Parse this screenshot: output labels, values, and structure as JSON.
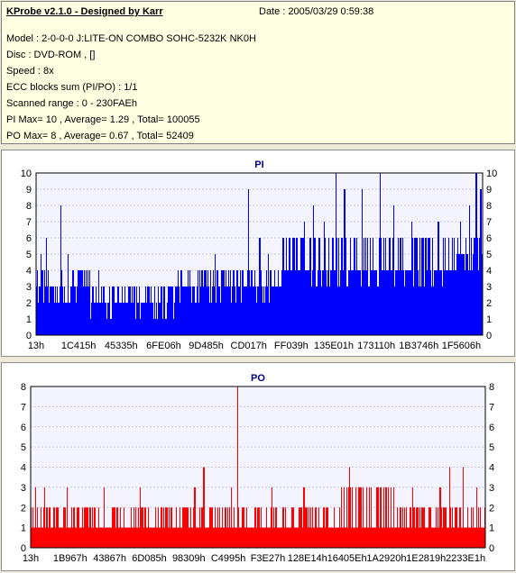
{
  "header": {
    "title": "KProbe v2.1.0 - Designed by Karr",
    "date": "Date : 2005/03/29 0:59:38",
    "lines": [
      "Model : 2-0-0-0 J:LITE-ON COMBO SOHC-5232K NK0H",
      "Disc : DVD-ROM ,  []",
      "Speed : 8x",
      "ECC blocks sum (PI/PO) : 1/1",
      "Scanned range : 0 - 230FAEh",
      "PI Max= 10 , Average= 1.29 , Total= 100055",
      "PO Max= 8 , Average= 0.67 , Total= 52409"
    ]
  },
  "chart_data": [
    {
      "type": "bar",
      "title": "PI",
      "ylim": [
        0,
        10
      ],
      "yticks": [
        "0",
        "1",
        "2",
        "3",
        "4",
        "5",
        "6",
        "7",
        "8",
        "9",
        "10"
      ],
      "xticks": [
        "13h",
        "1C415h",
        "45335h",
        "6FE06h",
        "9D485h",
        "CD017h",
        "FF039h",
        "135E01h",
        "173110h",
        "1B3746h",
        "1F5606h"
      ],
      "color": "#0000ff",
      "grid": true,
      "segments": [
        {
          "start": 0.0,
          "end": 0.12,
          "base": 3,
          "peak": 4,
          "spikes": [
            [
              0.01,
              5
            ],
            [
              0.022,
              6
            ],
            [
              0.055,
              8
            ],
            [
              0.07,
              5
            ],
            [
              0.1,
              4
            ]
          ]
        },
        {
          "start": 0.12,
          "end": 0.31,
          "base": 2,
          "peak": 3,
          "spikes": [
            [
              0.14,
              4
            ],
            [
              0.22,
              3
            ],
            [
              0.28,
              3
            ]
          ]
        },
        {
          "start": 0.31,
          "end": 0.44,
          "base": 3,
          "peak": 4,
          "spikes": [
            [
              0.34,
              4
            ],
            [
              0.4,
              5
            ],
            [
              0.42,
              4
            ]
          ]
        },
        {
          "start": 0.44,
          "end": 0.55,
          "base": 3,
          "peak": 4,
          "spikes": [
            [
              0.475,
              9
            ],
            [
              0.5,
              6
            ],
            [
              0.52,
              5
            ]
          ]
        },
        {
          "start": 0.55,
          "end": 0.94,
          "base": 4,
          "peak": 6,
          "spikes": [
            [
              0.6,
              7
            ],
            [
              0.62,
              8
            ],
            [
              0.645,
              7
            ],
            [
              0.67,
              10
            ],
            [
              0.69,
              9
            ],
            [
              0.73,
              9
            ],
            [
              0.77,
              10
            ],
            [
              0.8,
              8
            ],
            [
              0.84,
              7
            ],
            [
              0.87,
              6
            ],
            [
              0.9,
              7
            ]
          ]
        },
        {
          "start": 0.94,
          "end": 1.0,
          "base": 5,
          "peak": 6,
          "spikes": [
            [
              0.95,
              7
            ],
            [
              0.97,
              8
            ],
            [
              0.985,
              10
            ],
            [
              0.995,
              9
            ]
          ]
        }
      ]
    },
    {
      "type": "bar",
      "title": "PO",
      "ylim": [
        0,
        8
      ],
      "yticks": [
        "0",
        "1",
        "2",
        "3",
        "4",
        "5",
        "6",
        "7",
        "8"
      ],
      "xticks": [
        "13h",
        "1B967h",
        "43867h",
        "6D085h",
        "98309h",
        "C4995h",
        "F3E27h",
        "128E14h",
        "16405Eh",
        "1A2920h",
        "1E2819h",
        "2233E1h"
      ],
      "color": "#ff0000",
      "grid": true,
      "segments": [
        {
          "start": 0.0,
          "end": 0.3,
          "base": 1,
          "peak": 2,
          "spikes": [
            [
              0.01,
              3
            ],
            [
              0.03,
              3
            ],
            [
              0.05,
              2
            ],
            [
              0.08,
              3
            ],
            [
              0.13,
              2
            ],
            [
              0.16,
              3
            ],
            [
              0.22,
              2
            ],
            [
              0.24,
              3
            ],
            [
              0.28,
              2
            ]
          ]
        },
        {
          "start": 0.3,
          "end": 0.55,
          "base": 1,
          "peak": 2,
          "spikes": [
            [
              0.32,
              2
            ],
            [
              0.36,
              3
            ],
            [
              0.38,
              4
            ],
            [
              0.44,
              3
            ],
            [
              0.455,
              8
            ],
            [
              0.5,
              2
            ],
            [
              0.53,
              3
            ]
          ]
        },
        {
          "start": 0.55,
          "end": 0.68,
          "base": 1,
          "peak": 2,
          "spikes": [
            [
              0.56,
              2
            ],
            [
              0.6,
              3
            ],
            [
              0.65,
              2
            ]
          ]
        },
        {
          "start": 0.68,
          "end": 0.8,
          "base": 1,
          "peak": 3,
          "spikes": [
            [
              0.7,
              4
            ],
            [
              0.73,
              3
            ],
            [
              0.76,
              3
            ]
          ]
        },
        {
          "start": 0.8,
          "end": 1.0,
          "base": 1,
          "peak": 2,
          "spikes": [
            [
              0.84,
              3
            ],
            [
              0.9,
              3
            ],
            [
              0.92,
              4
            ],
            [
              0.95,
              4
            ],
            [
              0.98,
              3
            ]
          ]
        }
      ]
    }
  ]
}
